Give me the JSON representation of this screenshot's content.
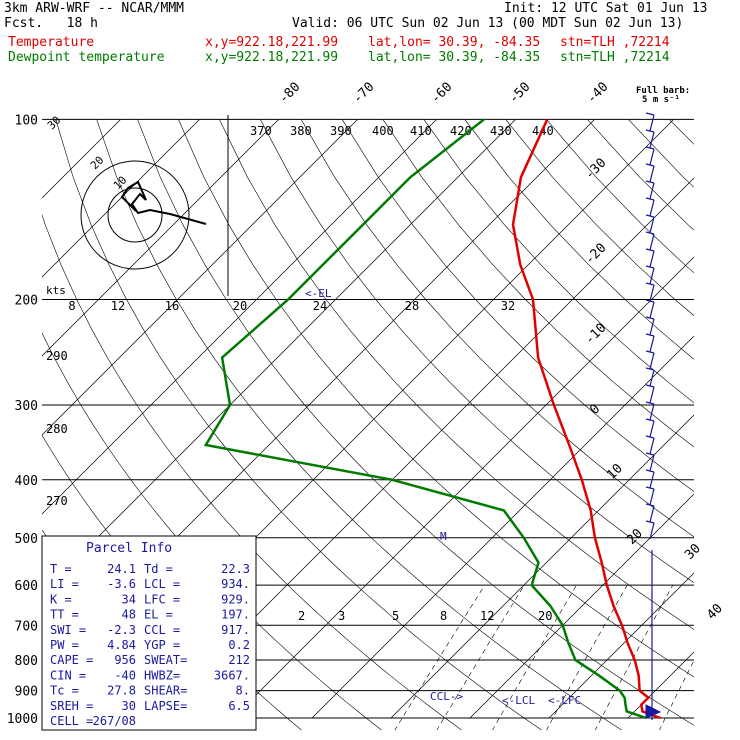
{
  "header": {
    "model": "3km ARW-WRF -- NCAR/MMM",
    "init": "Init: 12 UTC Sat 01 Jun 13",
    "fcst": "Fcst.   18 h",
    "valid": "Valid: 06 UTC Sun 02 Jun 13 (00 MDT Sun 02 Jun 13)",
    "temp_label": "Temperature",
    "dew_label": "Dewpoint temperature",
    "xy": "x,y=922.18,221.99",
    "latlon": "lat,lon= 30.39, -84.35",
    "stn": "stn=TLH ,72214"
  },
  "barb_legend": {
    "line1": "Full barb:",
    "line2": "5 m s⁻¹"
  },
  "parcel_info": {
    "title": "Parcel Info",
    "rows": [
      [
        "T  =",
        "24.1",
        "Td =",
        "22.3"
      ],
      [
        "LI =",
        "-3.6",
        "LCL =",
        "934."
      ],
      [
        "K  =",
        "34",
        "LFC =",
        "929."
      ],
      [
        "TT =",
        "48",
        "EL =",
        "197."
      ],
      [
        "SWI =",
        "-2.3",
        "CCL =",
        "917."
      ],
      [
        "PW =",
        "4.84",
        "YGP =",
        "0.2"
      ],
      [
        "CAPE =",
        "956",
        "SWEAT=",
        "212"
      ],
      [
        "CIN =",
        "-40",
        "HWBZ=",
        "3667."
      ],
      [
        "Tc =",
        "27.8",
        "SHEAR=",
        "8."
      ],
      [
        "SREH =",
        "30",
        "LAPSE=",
        "6.5"
      ],
      [
        "CELL =",
        "267/08",
        "",
        ""
      ]
    ]
  },
  "annotations": {
    "el": "<-EL",
    "m": "M",
    "ccl": "CCL->",
    "lcl": "<-LCL",
    "lfc": "<-LFC"
  },
  "hodograph": {
    "units": "kts",
    "ticks": [
      "8",
      "12",
      "16",
      "20",
      "24",
      "28",
      "32"
    ],
    "ring_labels": [
      "10",
      "20",
      "30"
    ]
  },
  "chart_data": {
    "type": "line",
    "title": "",
    "ylabel": "",
    "xlabel": "",
    "pressure_levels": [
      100,
      200,
      300,
      400,
      500,
      600,
      700,
      800,
      900,
      1000
    ],
    "isotherm_labels": [
      "-80",
      "-70",
      "-60",
      "-50",
      "-40",
      "-30",
      "-20",
      "-10",
      "0",
      "10",
      "20",
      "30",
      "40"
    ],
    "theta_labels": [
      "370",
      "380",
      "390",
      "400",
      "410",
      "420",
      "430",
      "440",
      "290",
      "280",
      "270"
    ],
    "mixing_ratio_labels": [
      "2",
      "3",
      "5",
      "8",
      "12",
      "20"
    ],
    "series": [
      {
        "name": "Temperature",
        "color": "#e00000",
        "p": [
          1000,
          975,
          950,
          925,
          900,
          850,
          800,
          750,
          700,
          650,
          600,
          550,
          500,
          450,
          400,
          350,
          300,
          250,
          200,
          175,
          150,
          125,
          100
        ],
        "t": [
          24.1,
          21,
          20,
          20,
          18,
          16,
          13.5,
          10.5,
          7.5,
          4,
          0.5,
          -3,
          -7,
          -11,
          -16,
          -22,
          -29,
          -37,
          -45,
          -51,
          -57,
          -62,
          -66
        ]
      },
      {
        "name": "Dewpoint temperature",
        "color": "#007a00",
        "p": [
          1000,
          975,
          950,
          925,
          900,
          850,
          800,
          750,
          700,
          650,
          600,
          550,
          500,
          450,
          400,
          350,
          300,
          250,
          200,
          175,
          150,
          125,
          100
        ],
        "td": [
          22.3,
          19,
          18,
          17,
          15.5,
          11,
          6,
          3,
          0,
          -4,
          -9,
          -11,
          -16,
          -22,
          -40,
          -68,
          -70,
          -77,
          -76,
          -76,
          -76,
          -76,
          -74
        ]
      }
    ],
    "grid": true
  }
}
